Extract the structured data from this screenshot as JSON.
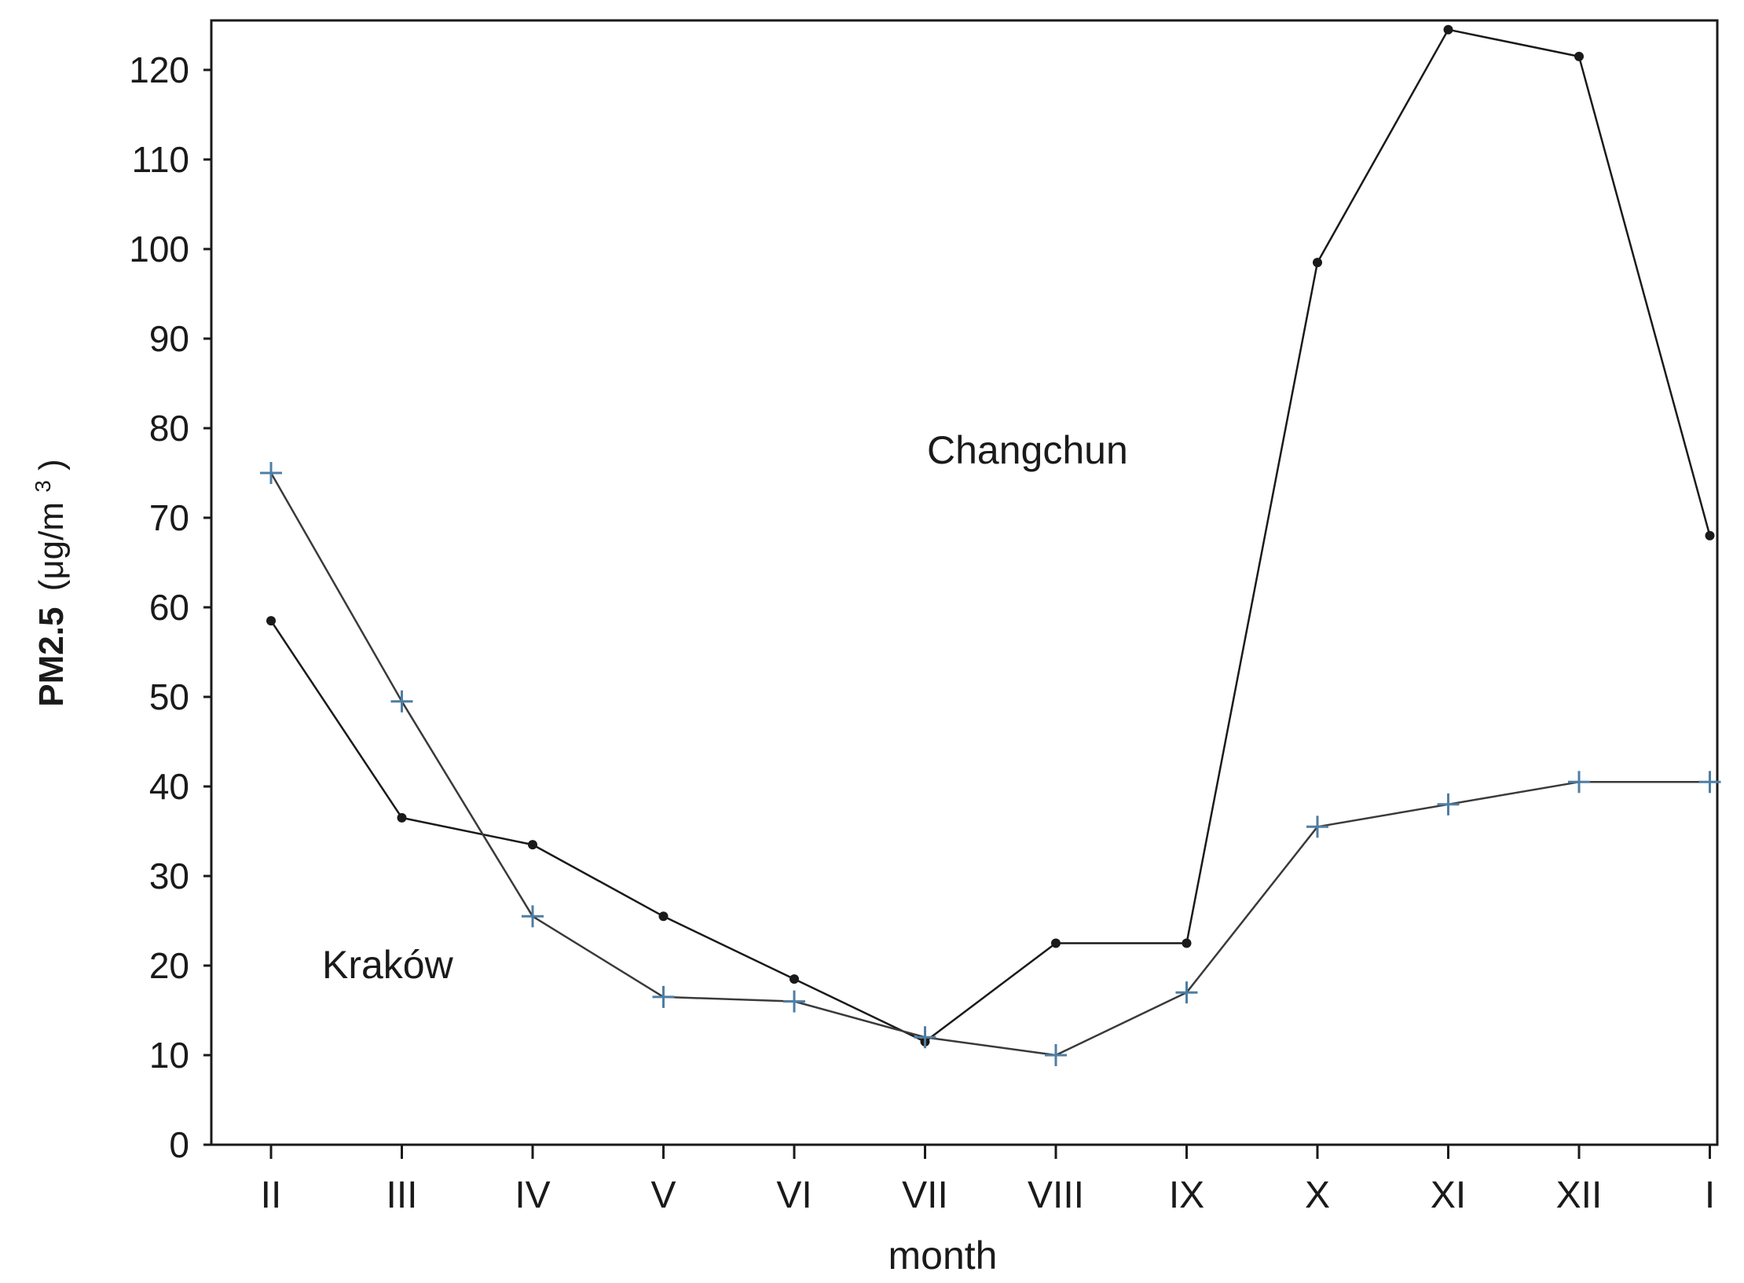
{
  "chart_data": {
    "type": "line",
    "xlabel": "month",
    "ylabel": "PM2.5 (μg/m³)",
    "ylabel_parts": {
      "main": "PM2.5",
      "unit_open": "(μg/m",
      "unit_sup": "3",
      "unit_close": ")"
    },
    "categories": [
      "II",
      "III",
      "IV",
      "V",
      "VI",
      "VII",
      "VIII",
      "IX",
      "X",
      "XI",
      "XII",
      "I"
    ],
    "ylim": [
      0,
      125
    ],
    "yticks": [
      0,
      10,
      20,
      30,
      40,
      50,
      60,
      70,
      80,
      90,
      100,
      110,
      120
    ],
    "grid": false,
    "series": [
      {
        "name": "Changchun",
        "marker": "dot",
        "color": "#1a1a1a",
        "values": [
          58.5,
          36.5,
          33.5,
          25.5,
          18.5,
          11.5,
          22.5,
          22.5,
          98.5,
          124.5,
          121.5,
          68
        ]
      },
      {
        "name": "Kraków",
        "marker": "plus",
        "color": "#3a3a3a",
        "marker_color": "#4f7ea3",
        "values": [
          75,
          49.5,
          25.5,
          16.5,
          16,
          12,
          10,
          17,
          35.5,
          38,
          40.5,
          40.5
        ]
      }
    ],
    "annotations": [
      {
        "text": "Changchun",
        "series": "Changchun"
      },
      {
        "text": "Kraków",
        "series": "Kraków"
      }
    ]
  }
}
